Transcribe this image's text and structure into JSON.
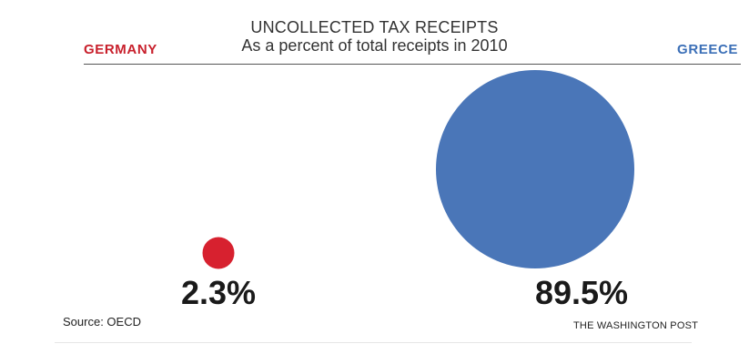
{
  "chart_data": {
    "type": "bubble",
    "title": "UNCOLLECTED TAX RECEIPTS",
    "subtitle": "As a percent of total receipts in 2010",
    "categories": [
      "GERMANY",
      "GREECE"
    ],
    "values": [
      2.3,
      89.5
    ],
    "value_labels": [
      "2.3%",
      "89.5%"
    ],
    "unit": "%",
    "colors": [
      "#d7212f",
      "#4a76b8"
    ],
    "label_colors": [
      "#c8202c",
      "#3b6fb7"
    ],
    "source": "Source: OECD",
    "credit": "THE WASHINGTON POST",
    "legend": "none",
    "grid": false
  }
}
